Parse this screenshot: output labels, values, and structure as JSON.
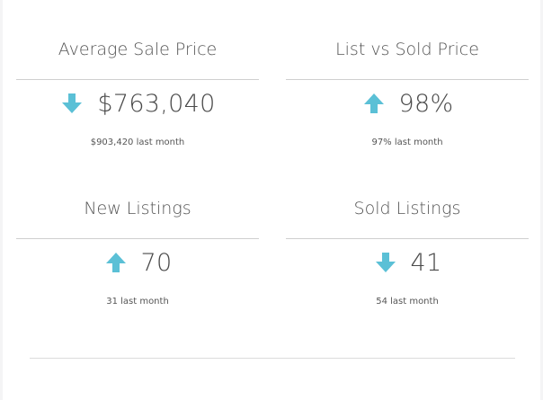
{
  "theme": {
    "arrow_color": "#5bc0d6"
  },
  "stats": [
    {
      "title": "Average Sale Price",
      "value": "$763,040",
      "direction": "down-arrow-icon",
      "sub": "$903,420 last month"
    },
    {
      "title": "List vs Sold Price",
      "value": "98%",
      "direction": "up-arrow-icon",
      "sub": "97% last month"
    },
    {
      "title": "New Listings",
      "value": "70",
      "direction": "up-arrow-icon",
      "sub": "31 last month"
    },
    {
      "title": "Sold Listings",
      "value": "41",
      "direction": "down-arrow-icon",
      "sub": "54 last month"
    }
  ]
}
